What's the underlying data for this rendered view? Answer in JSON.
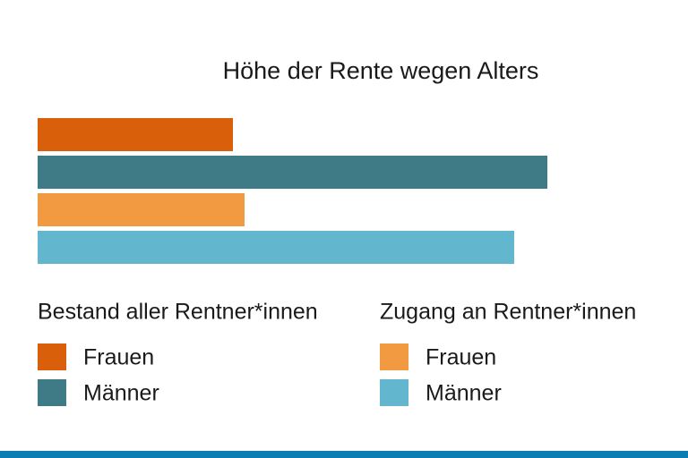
{
  "chart_data": {
    "type": "bar",
    "orientation": "horizontal",
    "title": "Höhe der Rente wegen Alters",
    "xlim": [
      0,
      700
    ],
    "groups": [
      {
        "title": "Bestand aller Rentner*innen",
        "series": [
          {
            "name": "Frauen",
            "color": "#d95f0a",
            "values": [
              218
            ]
          },
          {
            "name": "Männer",
            "color": "#3f7a87",
            "values": [
              569
            ]
          }
        ]
      },
      {
        "title": "Zugang an Rentner*innen",
        "series": [
          {
            "name": "Frauen",
            "color": "#f29a42",
            "values": [
              231
            ]
          },
          {
            "name": "Männer",
            "color": "#62b7cf",
            "values": [
              532
            ]
          }
        ]
      }
    ]
  }
}
